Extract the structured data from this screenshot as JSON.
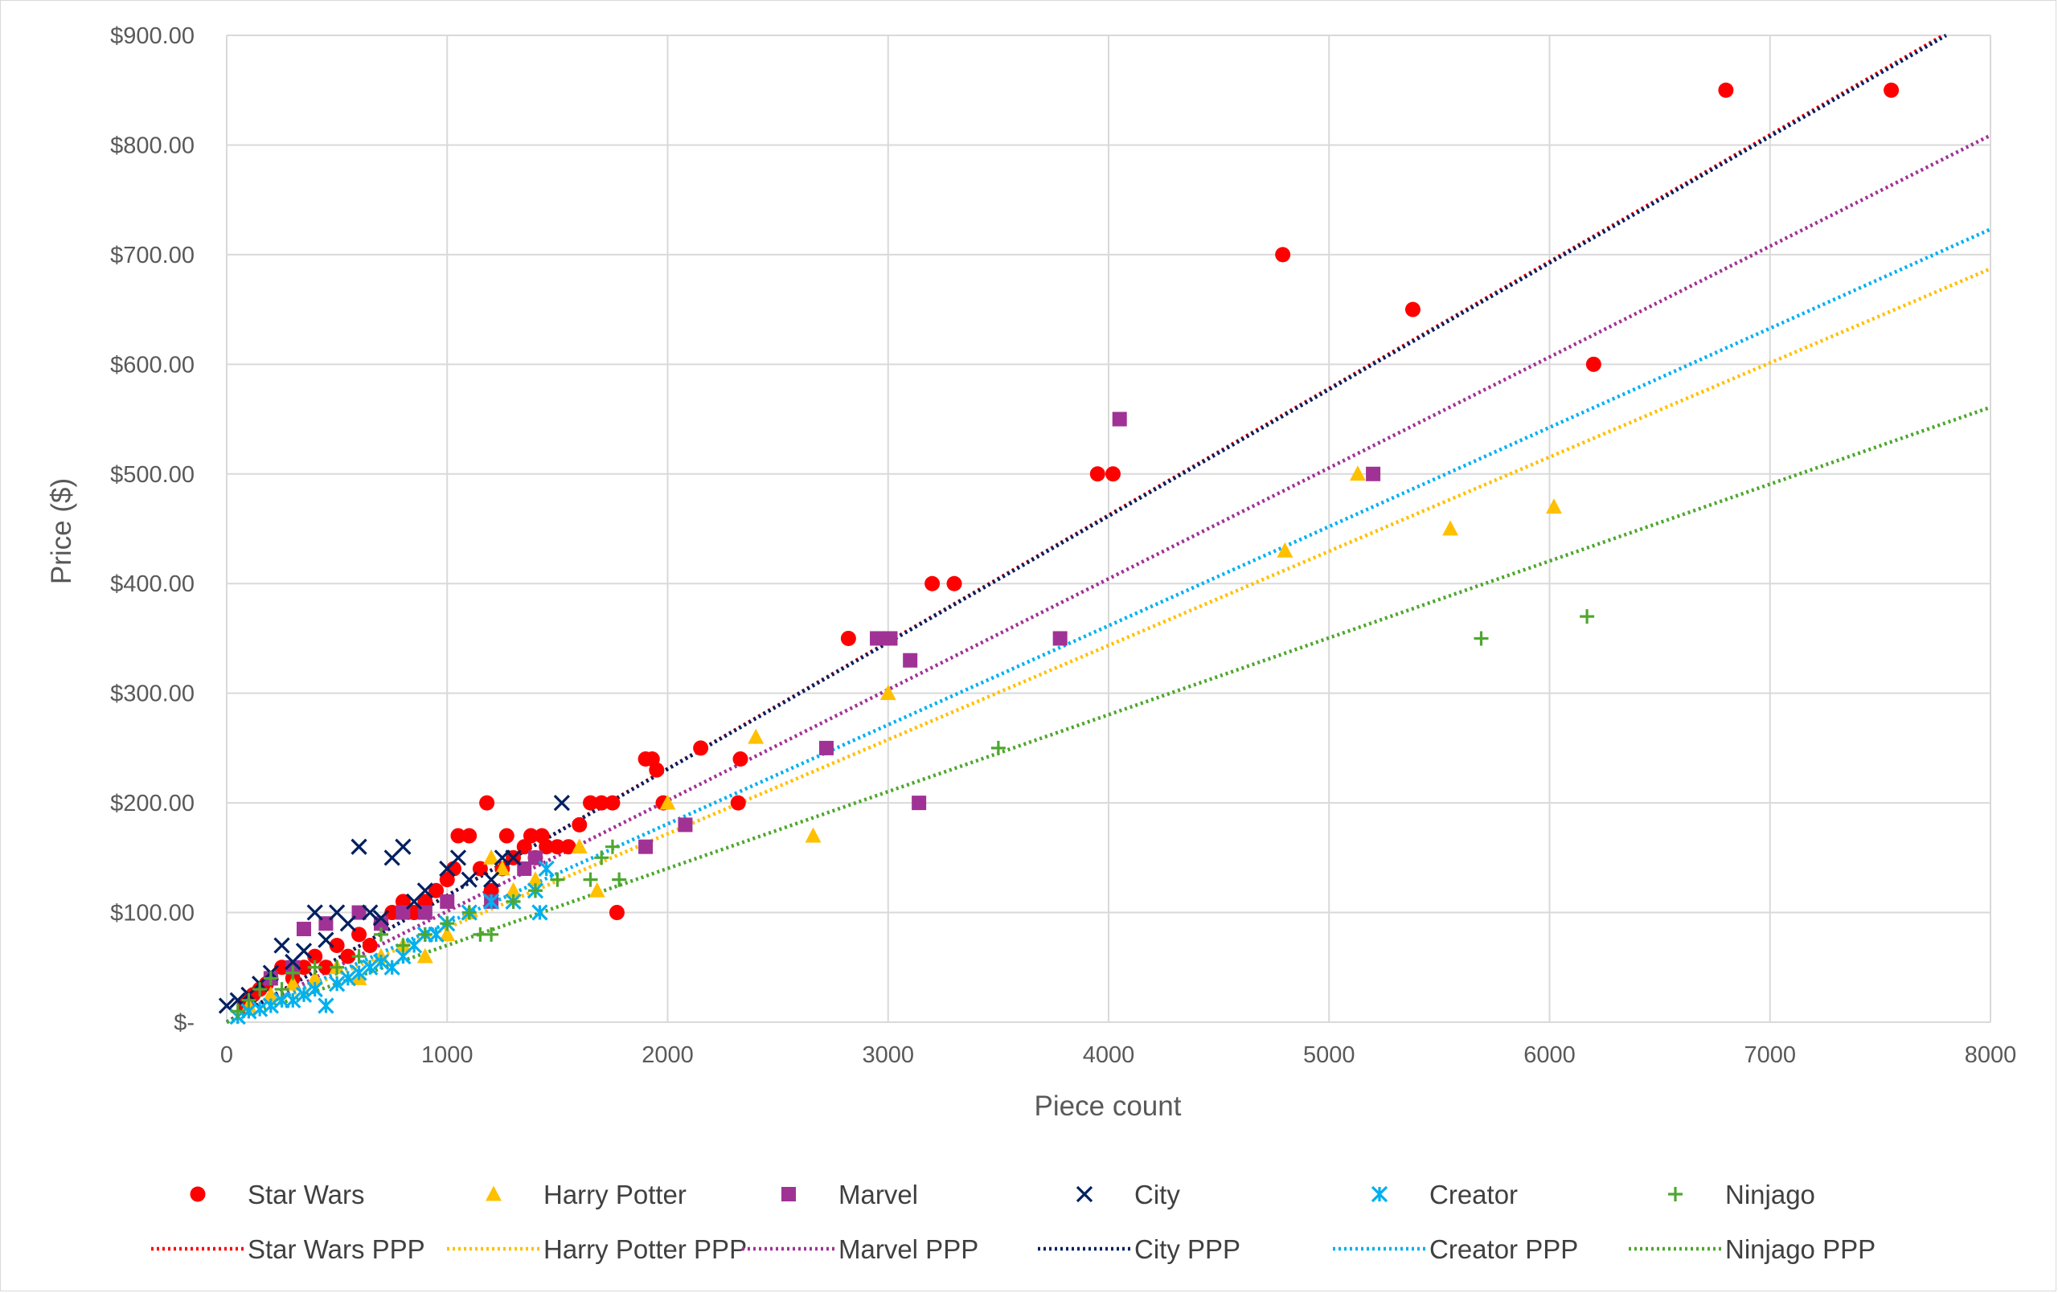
{
  "chart_data": {
    "type": "scatter",
    "xlabel": "Piece count",
    "ylabel": "Price ($)",
    "xlim": [
      0,
      8000
    ],
    "ylim": [
      0,
      900
    ],
    "x_ticks": [
      0,
      1000,
      2000,
      3000,
      4000,
      5000,
      6000,
      7000,
      8000
    ],
    "x_tick_labels": [
      "0",
      "1000",
      "2000",
      "3000",
      "4000",
      "5000",
      "6000",
      "7000",
      "8000"
    ],
    "y_ticks": [
      0,
      100,
      200,
      300,
      400,
      500,
      600,
      700,
      800,
      900
    ],
    "y_tick_labels": [
      "$-",
      "$100.00",
      "$200.00",
      "$300.00",
      "$400.00",
      "$500.00",
      "$600.00",
      "$700.00",
      "$800.00",
      "$900.00"
    ],
    "grid": "vertical and horizontal major gridlines",
    "legend_position": "bottom",
    "series": [
      {
        "name": "Star Wars",
        "marker": "circle",
        "color": "#ff0000",
        "points": [
          [
            80,
            15
          ],
          [
            100,
            20
          ],
          [
            120,
            25
          ],
          [
            150,
            30
          ],
          [
            180,
            35
          ],
          [
            200,
            40
          ],
          [
            250,
            50
          ],
          [
            300,
            40
          ],
          [
            350,
            50
          ],
          [
            400,
            60
          ],
          [
            450,
            50
          ],
          [
            500,
            70
          ],
          [
            550,
            60
          ],
          [
            600,
            80
          ],
          [
            650,
            70
          ],
          [
            700,
            90
          ],
          [
            750,
            100
          ],
          [
            800,
            110
          ],
          [
            850,
            100
          ],
          [
            900,
            110
          ],
          [
            950,
            120
          ],
          [
            1000,
            130
          ],
          [
            1030,
            140
          ],
          [
            1050,
            170
          ],
          [
            1100,
            170
          ],
          [
            1150,
            140
          ],
          [
            1180,
            200
          ],
          [
            1200,
            120
          ],
          [
            1250,
            140
          ],
          [
            1270,
            170
          ],
          [
            1300,
            150
          ],
          [
            1350,
            160
          ],
          [
            1380,
            170
          ],
          [
            1400,
            150
          ],
          [
            1430,
            170
          ],
          [
            1450,
            160
          ],
          [
            1500,
            160
          ],
          [
            1550,
            160
          ],
          [
            1600,
            180
          ],
          [
            1650,
            200
          ],
          [
            1700,
            200
          ],
          [
            1750,
            200
          ],
          [
            1770,
            100
          ],
          [
            1900,
            240
          ],
          [
            1930,
            240
          ],
          [
            1950,
            230
          ],
          [
            1980,
            200
          ],
          [
            2150,
            250
          ],
          [
            2320,
            200
          ],
          [
            2330,
            240
          ],
          [
            2820,
            350
          ],
          [
            3200,
            400
          ],
          [
            3300,
            400
          ],
          [
            3950,
            500
          ],
          [
            4020,
            500
          ],
          [
            4790,
            700
          ],
          [
            5380,
            650
          ],
          [
            6200,
            600
          ],
          [
            6800,
            850
          ],
          [
            7550,
            850
          ]
        ]
      },
      {
        "name": "Harry Potter",
        "marker": "triangle",
        "color": "#ffc000",
        "points": [
          [
            100,
            15
          ],
          [
            200,
            25
          ],
          [
            300,
            35
          ],
          [
            400,
            40
          ],
          [
            500,
            50
          ],
          [
            600,
            40
          ],
          [
            700,
            60
          ],
          [
            800,
            70
          ],
          [
            900,
            60
          ],
          [
            1000,
            80
          ],
          [
            1100,
            100
          ],
          [
            1200,
            150
          ],
          [
            1250,
            140
          ],
          [
            1300,
            120
          ],
          [
            1400,
            130
          ],
          [
            1600,
            160
          ],
          [
            1680,
            120
          ],
          [
            2000,
            200
          ],
          [
            2400,
            260
          ],
          [
            2660,
            170
          ],
          [
            3000,
            300
          ],
          [
            4800,
            430
          ],
          [
            5130,
            500
          ],
          [
            5550,
            450
          ],
          [
            6020,
            470
          ]
        ]
      },
      {
        "name": "Marvel",
        "marker": "square",
        "color": "#a03296",
        "points": [
          [
            200,
            40
          ],
          [
            300,
            50
          ],
          [
            350,
            85
          ],
          [
            450,
            90
          ],
          [
            600,
            100
          ],
          [
            700,
            90
          ],
          [
            800,
            100
          ],
          [
            900,
            100
          ],
          [
            1000,
            110
          ],
          [
            1200,
            110
          ],
          [
            1350,
            140
          ],
          [
            1400,
            150
          ],
          [
            1900,
            160
          ],
          [
            2080,
            180
          ],
          [
            2720,
            250
          ],
          [
            2950,
            350
          ],
          [
            3010,
            350
          ],
          [
            3100,
            330
          ],
          [
            3140,
            200
          ],
          [
            3780,
            350
          ],
          [
            4050,
            550
          ],
          [
            5200,
            500
          ]
        ]
      },
      {
        "name": "City",
        "marker": "x",
        "color": "#002060",
        "points": [
          [
            0,
            15
          ],
          [
            50,
            20
          ],
          [
            100,
            25
          ],
          [
            150,
            35
          ],
          [
            200,
            45
          ],
          [
            250,
            70
          ],
          [
            300,
            55
          ],
          [
            350,
            65
          ],
          [
            400,
            100
          ],
          [
            450,
            75
          ],
          [
            500,
            100
          ],
          [
            550,
            90
          ],
          [
            600,
            160
          ],
          [
            650,
            100
          ],
          [
            700,
            95
          ],
          [
            750,
            150
          ],
          [
            800,
            160
          ],
          [
            850,
            110
          ],
          [
            900,
            120
          ],
          [
            1000,
            140
          ],
          [
            1050,
            150
          ],
          [
            1100,
            130
          ],
          [
            1200,
            130
          ],
          [
            1250,
            150
          ],
          [
            1300,
            150
          ],
          [
            1520,
            200
          ]
        ]
      },
      {
        "name": "Creator",
        "marker": "asterisk",
        "color": "#00b0f0",
        "points": [
          [
            50,
            5
          ],
          [
            100,
            10
          ],
          [
            150,
            12
          ],
          [
            200,
            15
          ],
          [
            250,
            20
          ],
          [
            300,
            20
          ],
          [
            350,
            25
          ],
          [
            400,
            30
          ],
          [
            450,
            15
          ],
          [
            500,
            35
          ],
          [
            550,
            40
          ],
          [
            600,
            45
          ],
          [
            650,
            50
          ],
          [
            700,
            55
          ],
          [
            750,
            50
          ],
          [
            800,
            60
          ],
          [
            850,
            70
          ],
          [
            900,
            80
          ],
          [
            950,
            80
          ],
          [
            1000,
            90
          ],
          [
            1100,
            100
          ],
          [
            1200,
            110
          ],
          [
            1300,
            110
          ],
          [
            1400,
            120
          ],
          [
            1420,
            100
          ],
          [
            1450,
            140
          ]
        ]
      },
      {
        "name": "Ninjago",
        "marker": "plus",
        "color": "#4ea72e",
        "points": [
          [
            50,
            10
          ],
          [
            100,
            20
          ],
          [
            150,
            30
          ],
          [
            200,
            40
          ],
          [
            250,
            30
          ],
          [
            300,
            45
          ],
          [
            400,
            50
          ],
          [
            500,
            50
          ],
          [
            600,
            60
          ],
          [
            700,
            80
          ],
          [
            800,
            70
          ],
          [
            900,
            80
          ],
          [
            1000,
            90
          ],
          [
            1100,
            100
          ],
          [
            1150,
            80
          ],
          [
            1200,
            80
          ],
          [
            1300,
            110
          ],
          [
            1400,
            120
          ],
          [
            1500,
            130
          ],
          [
            1650,
            130
          ],
          [
            1700,
            150
          ],
          [
            1750,
            160
          ],
          [
            1780,
            130
          ],
          [
            3500,
            250
          ],
          [
            5690,
            350
          ],
          [
            6170,
            370
          ]
        ]
      }
    ],
    "trendlines": [
      {
        "name": "Star Wars PPP",
        "color": "#ff0000",
        "slope": 0.1156,
        "intercept": 0
      },
      {
        "name": "Harry Potter PPP",
        "color": "#ffc000",
        "slope": 0.0859,
        "intercept": 0
      },
      {
        "name": "Marvel PPP",
        "color": "#a03296",
        "slope": 0.1011,
        "intercept": 0
      },
      {
        "name": "City PPP",
        "color": "#002060",
        "slope": 0.1154,
        "intercept": 0
      },
      {
        "name": "Creator PPP",
        "color": "#00b0f0",
        "slope": 0.0904,
        "intercept": 0
      },
      {
        "name": "Ninjago PPP",
        "color": "#4ea72e",
        "slope": 0.0701,
        "intercept": 0
      }
    ]
  }
}
